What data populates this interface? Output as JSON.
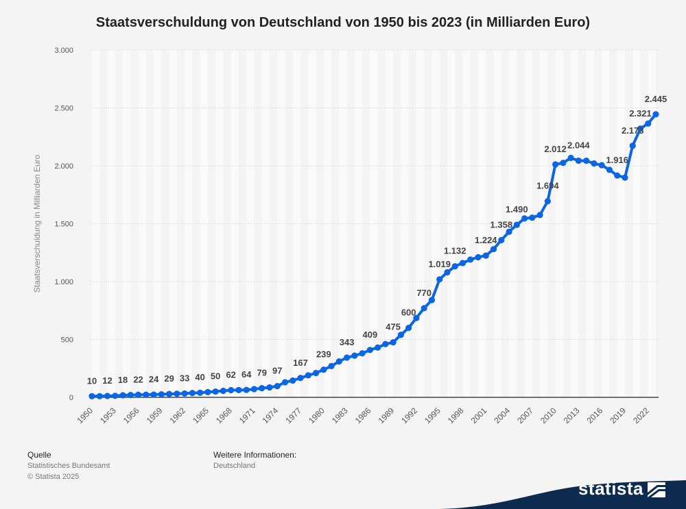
{
  "title": "Staatsverschuldung von Deutschland von 1950 bis 2023 (in Milliarden Euro)",
  "source": {
    "label": "Quelle",
    "name": "Statistisches Bundesamt",
    "copyright": "© Statista 2025"
  },
  "info": {
    "label": "Weitere Informationen:",
    "value": "Deutschland"
  },
  "brand": "statista",
  "colors": {
    "line": "#0c66e4",
    "background": "#f4f4f4",
    "band": "#fafafa"
  },
  "chart_data": {
    "type": "line",
    "title": "Staatsverschuldung von Deutschland von 1950 bis 2023 (in Milliarden Euro)",
    "xlabel": "",
    "ylabel": "Staatsverschuldung in Milliarden Euro",
    "ylim": [
      0,
      3000
    ],
    "yticks": [
      0,
      500,
      1000,
      1500,
      2000,
      2500,
      3000
    ],
    "ytick_labels": [
      "0",
      "500",
      "1.000",
      "1.500",
      "2.000",
      "2.500",
      "3.000"
    ],
    "xtick_labels": [
      "1950",
      "1953",
      "1956",
      "1959",
      "1962",
      "1965",
      "1968",
      "1971",
      "1974",
      "1977",
      "1980",
      "1983",
      "1986",
      "1989",
      "1992",
      "1995",
      "1998",
      "2001",
      "2004",
      "2007",
      "2010",
      "2013",
      "2016",
      "2019",
      "2022"
    ],
    "x": [
      1950,
      1951,
      1952,
      1953,
      1954,
      1955,
      1956,
      1957,
      1958,
      1959,
      1960,
      1961,
      1962,
      1963,
      1964,
      1965,
      1966,
      1967,
      1968,
      1969,
      1970,
      1971,
      1972,
      1973,
      1974,
      1975,
      1976,
      1977,
      1978,
      1979,
      1980,
      1981,
      1982,
      1983,
      1984,
      1985,
      1986,
      1987,
      1988,
      1989,
      1990,
      1991,
      1992,
      1993,
      1994,
      1995,
      1996,
      1997,
      1998,
      1999,
      2000,
      2001,
      2002,
      2003,
      2004,
      2005,
      2006,
      2007,
      2008,
      2009,
      2010,
      2011,
      2012,
      2013,
      2014,
      2015,
      2016,
      2017,
      2018,
      2019,
      2020,
      2021,
      2022,
      2023
    ],
    "series": [
      {
        "name": "Staatsverschuldung",
        "values": [
          10,
          10,
          12,
          13,
          18,
          20,
          22,
          23,
          24,
          26,
          29,
          31,
          33,
          37,
          40,
          45,
          50,
          56,
          62,
          63,
          64,
          71,
          79,
          86,
          97,
          130,
          145,
          167,
          190,
          210,
          239,
          270,
          310,
          343,
          360,
          380,
          409,
          430,
          460,
          475,
          540,
          600,
          685,
          770,
          840,
          1019,
          1080,
          1132,
          1160,
          1190,
          1210,
          1224,
          1280,
          1358,
          1430,
          1490,
          1545,
          1552,
          1575,
          1694,
          2012,
          2025,
          2068,
          2044,
          2044,
          2020,
          2005,
          1965,
          1916,
          1898,
          2173,
          2321,
          2365,
          2445
        ]
      }
    ],
    "labels": [
      {
        "year": 1950,
        "text": "10"
      },
      {
        "year": 1952,
        "text": "12"
      },
      {
        "year": 1954,
        "text": "18"
      },
      {
        "year": 1956,
        "text": "22"
      },
      {
        "year": 1958,
        "text": "24"
      },
      {
        "year": 1960,
        "text": "29"
      },
      {
        "year": 1962,
        "text": "33"
      },
      {
        "year": 1964,
        "text": "40"
      },
      {
        "year": 1966,
        "text": "50"
      },
      {
        "year": 1968,
        "text": "62"
      },
      {
        "year": 1970,
        "text": "64"
      },
      {
        "year": 1972,
        "text": "79"
      },
      {
        "year": 1974,
        "text": "97"
      },
      {
        "year": 1977,
        "text": "167"
      },
      {
        "year": 1980,
        "text": "239"
      },
      {
        "year": 1983,
        "text": "343"
      },
      {
        "year": 1986,
        "text": "409"
      },
      {
        "year": 1989,
        "text": "475"
      },
      {
        "year": 1991,
        "text": "600"
      },
      {
        "year": 1993,
        "text": "770"
      },
      {
        "year": 1995,
        "text": "1.019"
      },
      {
        "year": 1997,
        "text": "1.132"
      },
      {
        "year": 2001,
        "text": "1.224"
      },
      {
        "year": 2003,
        "text": "1.358"
      },
      {
        "year": 2005,
        "text": "1.490"
      },
      {
        "year": 2009,
        "text": "1.694"
      },
      {
        "year": 2010,
        "text": "2.012"
      },
      {
        "year": 2013,
        "text": "2.044"
      },
      {
        "year": 2018,
        "text": "1.916"
      },
      {
        "year": 2020,
        "text": "2.173"
      },
      {
        "year": 2021,
        "text": "2.321"
      },
      {
        "year": 2023,
        "text": "2.445"
      }
    ]
  }
}
